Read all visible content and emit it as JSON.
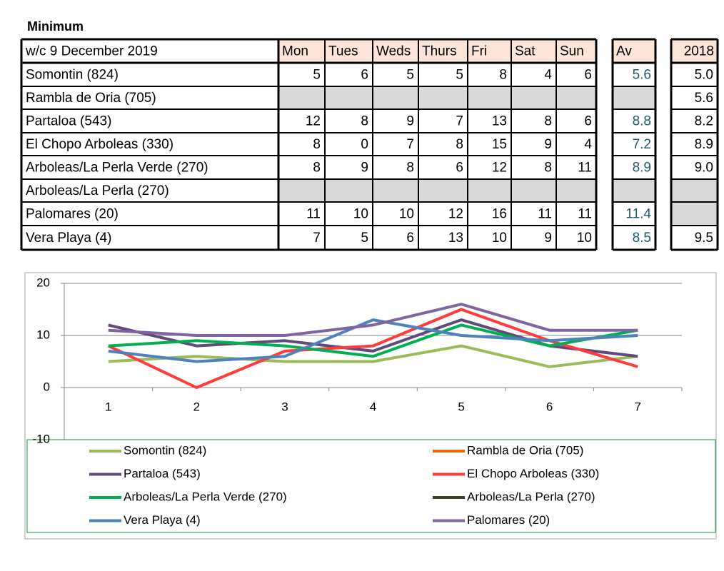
{
  "title": "Minimum",
  "table": {
    "caption": "w/c 9 December 2019",
    "days": [
      "Mon",
      "Tues",
      "Weds",
      "Thurs",
      "Fri",
      "Sat",
      "Sun"
    ],
    "av_label": "Av",
    "year_label": "2018",
    "rows": [
      {
        "name": "Somontin (824)",
        "values": [
          5,
          6,
          5,
          5,
          8,
          4,
          6
        ],
        "av": 5.6,
        "y2018": "5.0"
      },
      {
        "name": "Rambla de Oria (705)",
        "values": [
          null,
          null,
          null,
          null,
          null,
          null,
          null
        ],
        "av": null,
        "y2018": "5.6"
      },
      {
        "name": "Partaloa (543)",
        "values": [
          12,
          8,
          9,
          7,
          13,
          8,
          6
        ],
        "av": 8.8,
        "y2018": "8.2"
      },
      {
        "name": "El Chopo Arboleas (330)",
        "values": [
          8,
          0,
          7,
          8,
          15,
          9,
          4
        ],
        "av": 7.2,
        "y2018": "8.9"
      },
      {
        "name": "Arboleas/La Perla Verde (270)",
        "values": [
          8,
          9,
          8,
          6,
          12,
          8,
          11
        ],
        "av": 8.9,
        "y2018": "9.0"
      },
      {
        "name": "Arboleas/La Perla (270)",
        "values": [
          null,
          null,
          null,
          null,
          null,
          null,
          null
        ],
        "av": null,
        "y2018": null
      },
      {
        "name": "Palomares (20)",
        "values": [
          11,
          10,
          10,
          12,
          16,
          11,
          11
        ],
        "av": 11.4,
        "y2018": null
      },
      {
        "name": "Vera Playa (4)",
        "values": [
          7,
          5,
          6,
          13,
          10,
          9,
          10
        ],
        "av": 8.5,
        "y2018": "9.5"
      }
    ]
  },
  "chart_data": {
    "type": "line",
    "categories": [
      "1",
      "2",
      "3",
      "4",
      "5",
      "6",
      "7"
    ],
    "ylim": [
      -10,
      20
    ],
    "yticks": [
      -10,
      0,
      10,
      20
    ],
    "grid": true,
    "legend": "bottom",
    "series": [
      {
        "name": "Somontin (824)",
        "color": "#9bbb59",
        "values": [
          5,
          6,
          5,
          5,
          8,
          4,
          6
        ]
      },
      {
        "name": "Rambla de Oria (705)",
        "color": "#e46c0a",
        "values": [
          null,
          null,
          null,
          null,
          null,
          null,
          null
        ]
      },
      {
        "name": "Partaloa (543)",
        "color": "#604a7b",
        "values": [
          12,
          8,
          9,
          7,
          13,
          8,
          6
        ]
      },
      {
        "name": "El Chopo Arboleas (330)",
        "color": "#ff3b3b",
        "values": [
          8,
          0,
          7,
          8,
          15,
          9,
          4
        ]
      },
      {
        "name": "Arboleas/La Perla Verde (270)",
        "color": "#00b050",
        "values": [
          8,
          9,
          8,
          6,
          12,
          8,
          11
        ]
      },
      {
        "name": "Arboleas/La Perla (270)",
        "color": "#403f1f",
        "values": [
          null,
          null,
          null,
          null,
          null,
          null,
          null
        ]
      },
      {
        "name": "Vera Playa (4)",
        "color": "#4f81bd",
        "values": [
          7,
          5,
          6,
          13,
          10,
          9,
          10
        ]
      },
      {
        "name": "Palomares (20)",
        "color": "#8064a2",
        "values": [
          11,
          10,
          10,
          12,
          16,
          11,
          11
        ]
      }
    ]
  }
}
